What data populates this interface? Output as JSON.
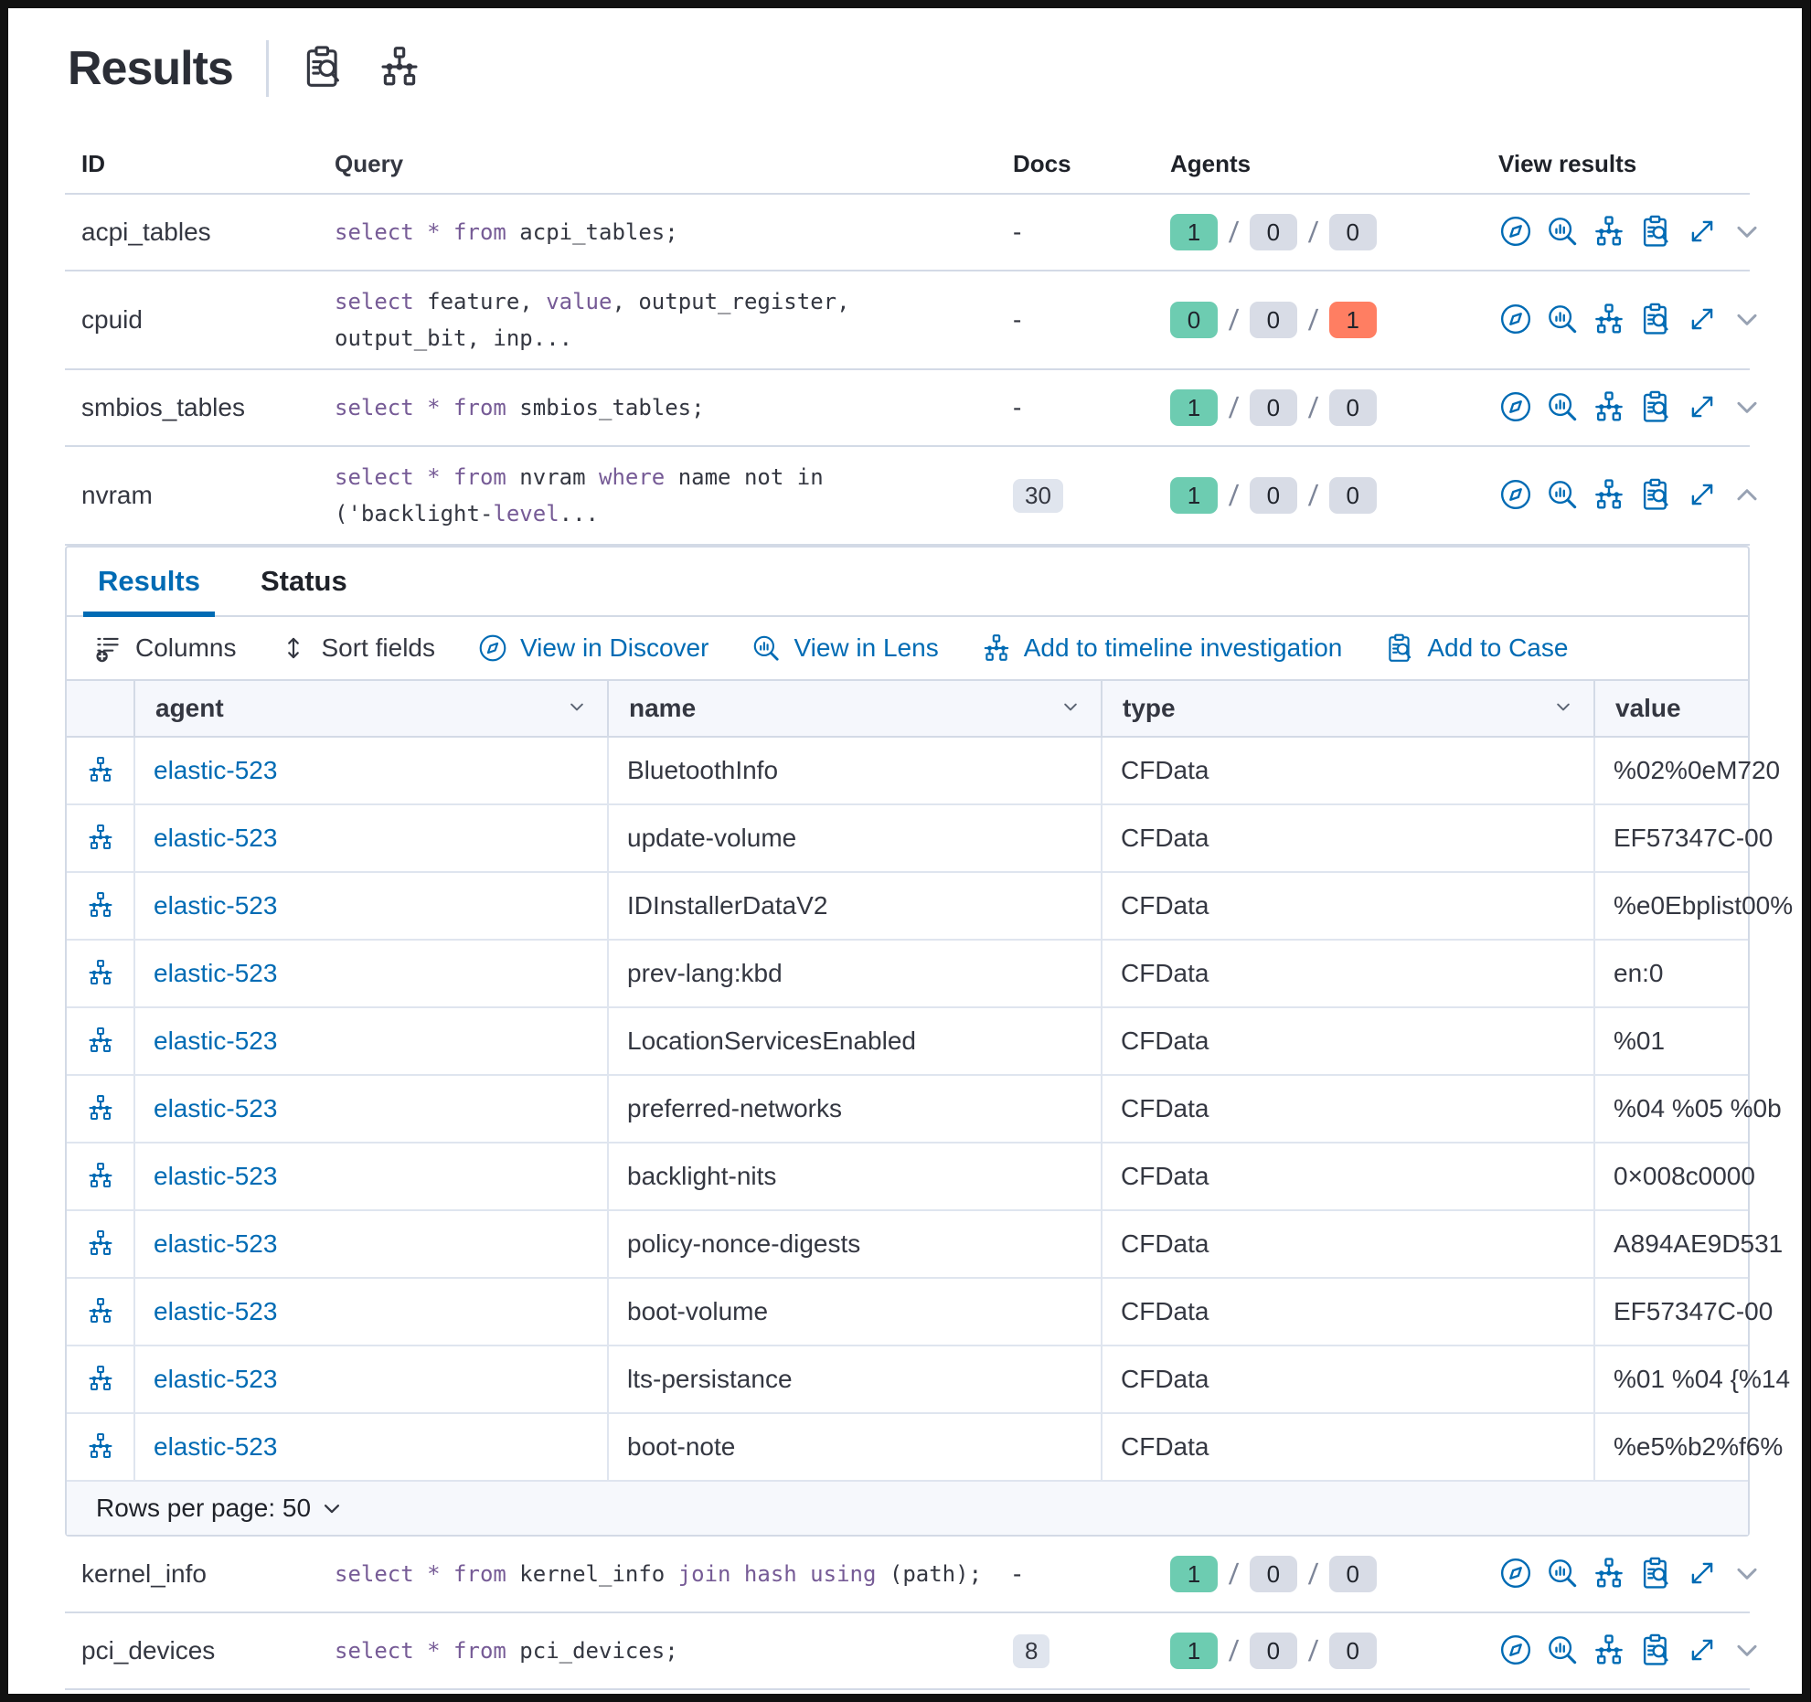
{
  "colors": {
    "primary": "#006bb4",
    "keyword": "#765b96",
    "success_badge": "#6dccb1",
    "neutral_badge": "#d8dce6",
    "danger_badge": "#ff7e62",
    "docs_badge": "#e0e5ee",
    "panel_border": "#d3dae6"
  },
  "header": {
    "title": "Results",
    "icons": [
      {
        "name": "case-icon"
      },
      {
        "name": "timeline-icon"
      }
    ]
  },
  "table": {
    "columns": [
      "ID",
      "Query",
      "Docs",
      "Agents",
      "View results"
    ],
    "action_icon_names": [
      "discover-icon",
      "lens-icon",
      "timeline-icon",
      "case-icon",
      "expand-icon"
    ],
    "rows": [
      {
        "id": "acpi_tables",
        "docs": "-",
        "docs_badge": false,
        "agents": {
          "ok": "1",
          "pending": "0",
          "failed": "0"
        },
        "expanded": false,
        "query": [
          [
            {
              "t": "select * from",
              "k": true
            },
            {
              "t": " acpi_tables;",
              "k": false
            }
          ]
        ]
      },
      {
        "id": "cpuid",
        "docs": "-",
        "docs_badge": false,
        "agents": {
          "ok": "0",
          "pending": "0",
          "failed": "1"
        },
        "expanded": false,
        "query": [
          [
            {
              "t": "select",
              "k": true
            },
            {
              "t": " feature, ",
              "k": false
            },
            {
              "t": "value",
              "k": true
            },
            {
              "t": ", output_register,",
              "k": false
            }
          ],
          [
            {
              "t": "output_bit, inp...",
              "k": false
            }
          ]
        ]
      },
      {
        "id": "smbios_tables",
        "docs": "-",
        "docs_badge": false,
        "agents": {
          "ok": "1",
          "pending": "0",
          "failed": "0"
        },
        "expanded": false,
        "query": [
          [
            {
              "t": "select * from",
              "k": true
            },
            {
              "t": " smbios_tables;",
              "k": false
            }
          ]
        ]
      },
      {
        "id": "nvram",
        "docs": "30",
        "docs_badge": true,
        "agents": {
          "ok": "1",
          "pending": "0",
          "failed": "0"
        },
        "expanded": true,
        "query": [
          [
            {
              "t": "select * from",
              "k": true
            },
            {
              "t": " nvram ",
              "k": false
            },
            {
              "t": "where",
              "k": true
            },
            {
              "t": " name not in",
              "k": false
            }
          ],
          [
            {
              "t": "('backlight-",
              "k": false
            },
            {
              "t": "level",
              "k": true
            },
            {
              "t": "...",
              "k": false
            }
          ]
        ]
      },
      {
        "id": "kernel_info",
        "docs": "-",
        "docs_badge": false,
        "agents": {
          "ok": "1",
          "pending": "0",
          "failed": "0"
        },
        "expanded": false,
        "query": [
          [
            {
              "t": "select * from",
              "k": true
            },
            {
              "t": " kernel_info ",
              "k": false
            },
            {
              "t": "join hash using",
              "k": true
            },
            {
              "t": " (path);",
              "k": false
            }
          ]
        ]
      },
      {
        "id": "pci_devices",
        "docs": "8",
        "docs_badge": true,
        "agents": {
          "ok": "1",
          "pending": "0",
          "failed": "0"
        },
        "expanded": false,
        "query": [
          [
            {
              "t": "select * from",
              "k": true
            },
            {
              "t": " pci_devices;",
              "k": false
            }
          ]
        ]
      }
    ]
  },
  "panel": {
    "tabs": [
      {
        "label": "Results",
        "active": true
      },
      {
        "label": "Status",
        "active": false
      }
    ],
    "toolbar": [
      {
        "label": "Columns",
        "icon": "columns-icon",
        "primary": false
      },
      {
        "label": "Sort fields",
        "icon": "sort-icon",
        "primary": false
      },
      {
        "label": "View in Discover",
        "icon": "discover-icon",
        "primary": true
      },
      {
        "label": "View in Lens",
        "icon": "lens-icon",
        "primary": true
      },
      {
        "label": "Add to timeline investigation",
        "icon": "timeline-icon",
        "primary": true
      },
      {
        "label": "Add to Case",
        "icon": "case-icon",
        "primary": true
      }
    ],
    "grid": {
      "columns": [
        "agent",
        "name",
        "type",
        "value"
      ],
      "rows": [
        {
          "agent": "elastic-523",
          "name": "BluetoothInfo",
          "type": "CFData",
          "value": "%02%0eM720"
        },
        {
          "agent": "elastic-523",
          "name": "update-volume",
          "type": "CFData",
          "value": "EF57347C-00"
        },
        {
          "agent": "elastic-523",
          "name": "IDInstallerDataV2",
          "type": "CFData",
          "value": "%e0Ebplist00%"
        },
        {
          "agent": "elastic-523",
          "name": "prev-lang:kbd",
          "type": "CFData",
          "value": "en:0"
        },
        {
          "agent": "elastic-523",
          "name": "LocationServicesEnabled",
          "type": "CFData",
          "value": "%01"
        },
        {
          "agent": "elastic-523",
          "name": "preferred-networks",
          "type": "CFData",
          "value": "%04 %05 %0b"
        },
        {
          "agent": "elastic-523",
          "name": "backlight-nits",
          "type": "CFData",
          "value": "0×008c0000"
        },
        {
          "agent": "elastic-523",
          "name": "policy-nonce-digests",
          "type": "CFData",
          "value": "A894AE9D531"
        },
        {
          "agent": "elastic-523",
          "name": "boot-volume",
          "type": "CFData",
          "value": "EF57347C-00"
        },
        {
          "agent": "elastic-523",
          "name": "lts-persistance",
          "type": "CFData",
          "value": "%01 %04 {%14"
        },
        {
          "agent": "elastic-523",
          "name": "boot-note",
          "type": "CFData",
          "value": "%e5%b2%f6%"
        }
      ]
    },
    "footer": {
      "rows_per_page": "Rows per page: 50"
    }
  }
}
